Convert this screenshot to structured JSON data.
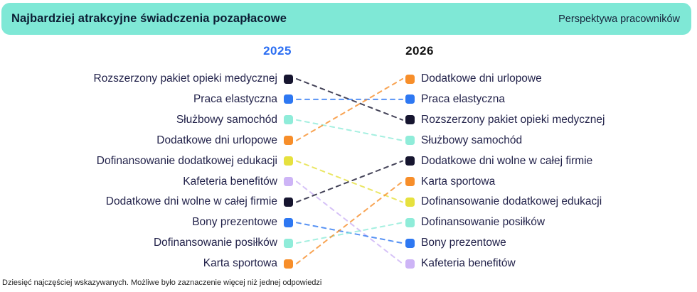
{
  "header": {
    "title": "Najbardziej atrakcyjne świadczenia pozapłacowe",
    "subtitle": "Perspektywa pracowników",
    "banner_color": "#7fe8d6",
    "title_color": "#0b1c33"
  },
  "footnote": "Dziesięć najczęściej wskazywanych. Możliwe było zaznaczenie więcej niż jednej odpowiedzi",
  "chart_data": {
    "type": "slope",
    "title": "Najbardziej atrakcyjne świadczenia pozapłacowe",
    "subtitle": "Perspektywa pracowników",
    "columns": [
      "2025",
      "2026"
    ],
    "column_label_colors": [
      "#2b6ef2",
      "#121212"
    ],
    "legend_colors": {
      "navy": "#16152f",
      "blue": "#2e78f2",
      "mint": "#8fecd9",
      "orange": "#f78e2a",
      "yellow": "#e6e13e",
      "lavender": "#cdb4f6"
    },
    "left": [
      {
        "rank": 1,
        "label": "Rozszerzony pakiet opieki medycznej",
        "color": "#16152f"
      },
      {
        "rank": 2,
        "label": "Praca elastyczna",
        "color": "#2e78f2"
      },
      {
        "rank": 3,
        "label": "Służbowy samochód",
        "color": "#8fecd9"
      },
      {
        "rank": 4,
        "label": "Dodatkowe dni urlopowe",
        "color": "#f78e2a"
      },
      {
        "rank": 5,
        "label": "Dofinansowanie dodatkowej edukacji",
        "color": "#e6e13e"
      },
      {
        "rank": 6,
        "label": "Kafeteria benefitów",
        "color": "#cdb4f6"
      },
      {
        "rank": 7,
        "label": "Dodatkowe dni wolne w całej firmie",
        "color": "#16152f"
      },
      {
        "rank": 8,
        "label": "Bony prezentowe",
        "color": "#2e78f2"
      },
      {
        "rank": 9,
        "label": "Dofinansowanie posiłków",
        "color": "#8fecd9"
      },
      {
        "rank": 10,
        "label": "Karta sportowa",
        "color": "#f78e2a"
      }
    ],
    "right": [
      {
        "rank": 1,
        "label": "Dodatkowe dni urlopowe",
        "color": "#f78e2a"
      },
      {
        "rank": 2,
        "label": "Praca elastyczna",
        "color": "#2e78f2"
      },
      {
        "rank": 3,
        "label": "Rozszerzony pakiet opieki medycznej",
        "color": "#16152f"
      },
      {
        "rank": 4,
        "label": "Służbowy samochód",
        "color": "#8fecd9"
      },
      {
        "rank": 5,
        "label": "Dodatkowe dni wolne w całej firmie",
        "color": "#16152f"
      },
      {
        "rank": 6,
        "label": "Karta sportowa",
        "color": "#f78e2a"
      },
      {
        "rank": 7,
        "label": "Dofinansowanie dodatkowej edukacji",
        "color": "#e6e13e"
      },
      {
        "rank": 8,
        "label": "Dofinansowanie posiłków",
        "color": "#8fecd9"
      },
      {
        "rank": 9,
        "label": "Bony prezentowe",
        "color": "#2e78f2"
      },
      {
        "rank": 10,
        "label": "Kafeteria benefitów",
        "color": "#cdb4f6"
      }
    ],
    "links": [
      {
        "from": 0,
        "to": 2
      },
      {
        "from": 1,
        "to": 1
      },
      {
        "from": 2,
        "to": 3
      },
      {
        "from": 3,
        "to": 0
      },
      {
        "from": 4,
        "to": 6
      },
      {
        "from": 5,
        "to": 9
      },
      {
        "from": 6,
        "to": 4
      },
      {
        "from": 7,
        "to": 8
      },
      {
        "from": 8,
        "to": 7
      },
      {
        "from": 9,
        "to": 5
      }
    ]
  }
}
